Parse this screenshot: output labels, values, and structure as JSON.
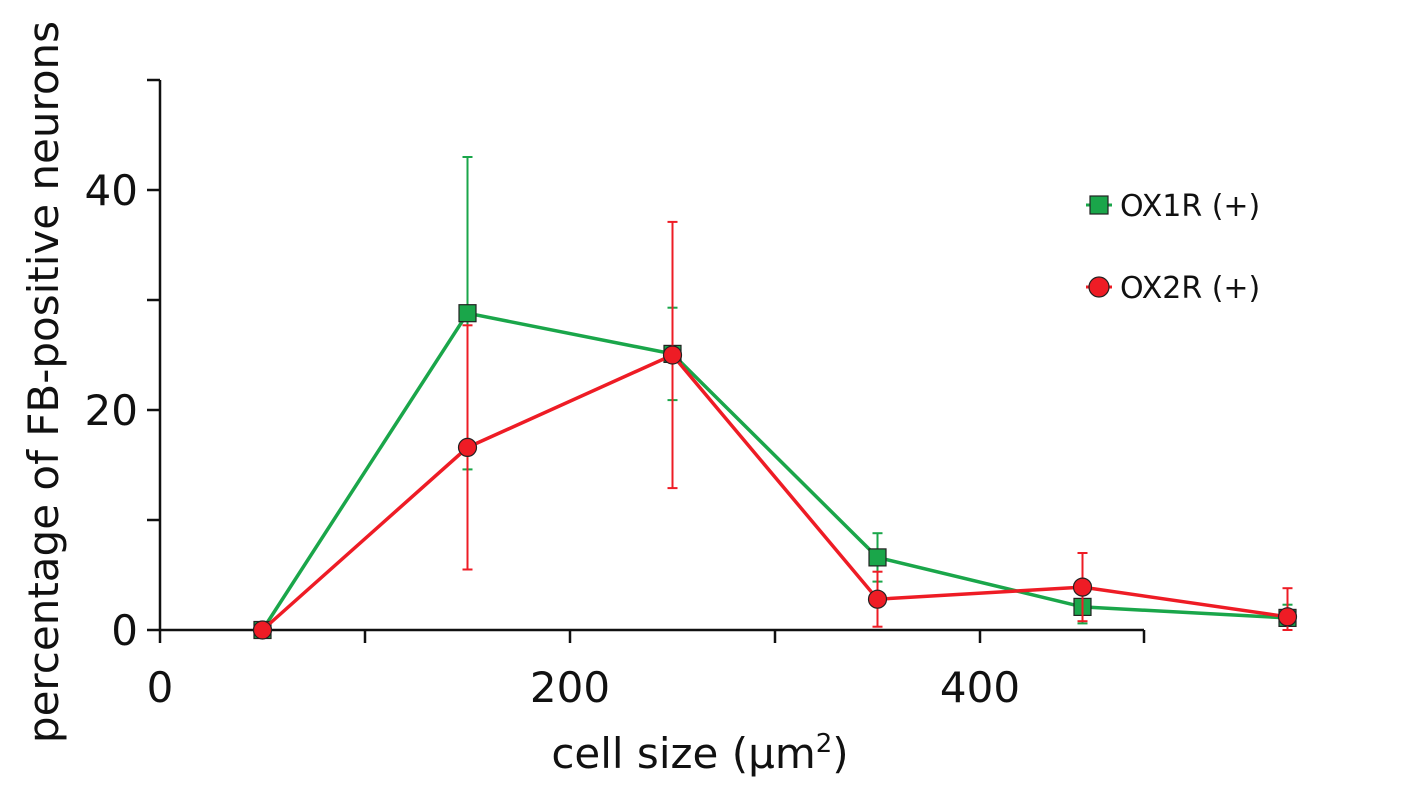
{
  "chart_data": {
    "type": "line",
    "title": "",
    "xlabel": "cell size (μm",
    "xlabel_superscript": "2",
    "xlabel_suffix": ")",
    "ylabel": "percentage of FB-positive neurons",
    "xlim": [
      0,
      480
    ],
    "ylim": [
      0,
      50
    ],
    "x_major_ticks": [
      0,
      200,
      400
    ],
    "x_minor_ticks": [
      100,
      300
    ],
    "y_major_ticks": [
      0,
      20,
      40
    ],
    "y_minor_ticks": [
      10,
      30
    ],
    "x_tick_labels": [
      "0",
      "200",
      "400"
    ],
    "y_tick_labels": [
      "0",
      "20",
      "40"
    ],
    "grid": false,
    "legend_position": "top-right",
    "x": [
      50,
      150,
      250,
      350,
      450,
      550
    ],
    "series": [
      {
        "name": "OX1R (+)",
        "color": "#1aa64a",
        "marker": "square",
        "x": [
          50,
          150,
          250,
          350,
          450,
          550
        ],
        "values": [
          0,
          28.8,
          25.1,
          6.6,
          2.1,
          1.1
        ],
        "error": [
          0,
          14.2,
          4.2,
          2.2,
          1.5,
          1.2
        ]
      },
      {
        "name": "OX2R (+)",
        "color": "#ee1c25",
        "marker": "circle",
        "x": [
          50,
          150,
          250,
          350,
          450,
          550
        ],
        "values": [
          0,
          16.6,
          25.0,
          2.8,
          3.9,
          1.2
        ],
        "error": [
          0,
          11.1,
          12.1,
          2.5,
          3.1,
          2.6
        ]
      }
    ]
  }
}
